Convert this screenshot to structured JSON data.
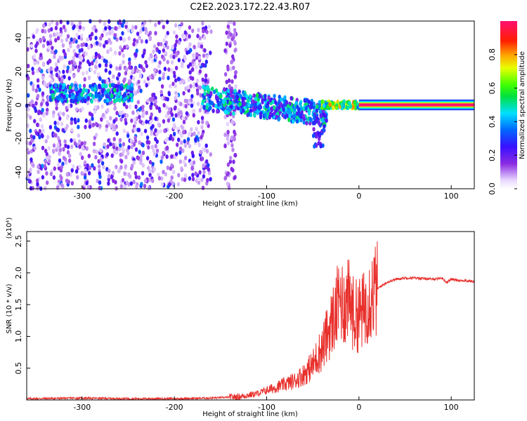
{
  "title": "C2E2.2023.172.22.43.R07",
  "colors": {
    "series": "#e8302c",
    "frame": "#000000",
    "background": "#ffffff"
  },
  "colorbar": {
    "label": "Normalized spectral amplitude",
    "ticks": [
      "0.0",
      "0.2",
      "0.4",
      "0.6",
      "0.8"
    ],
    "range": [
      0,
      1
    ],
    "colormap": "rainbow (white-violet-blue-cyan-green-yellow-orange-red-magenta)"
  },
  "chart_data": [
    {
      "type": "heatmap",
      "title": "C2E2.2023.172.22.43.R07",
      "xlabel": "Height of straight line (km)",
      "ylabel": "Frequency (Hz)",
      "xlim": [
        -360,
        125
      ],
      "ylim": [
        -50,
        50
      ],
      "xticks": [
        "-300",
        "-200",
        "-100",
        "0",
        "100"
      ],
      "yticks": [
        "40",
        "20",
        "0",
        "-20",
        "-40"
      ],
      "zlim": [
        0,
        1
      ],
      "zlabel": "Normalized spectral amplitude",
      "description_points": [
        {
          "x": -300,
          "y": 8,
          "z": 0.35
        },
        {
          "x": -260,
          "y": 6,
          "z": 0.4
        },
        {
          "x": -140,
          "y": 3,
          "z": 0.4
        },
        {
          "x": -110,
          "y": 1,
          "z": 0.45
        },
        {
          "x": -80,
          "y": -3,
          "z": 0.4
        },
        {
          "x": -50,
          "y": -4,
          "z": 0.5
        },
        {
          "x": -20,
          "y": 0,
          "z": 0.8
        },
        {
          "x": 0,
          "y": 0,
          "z": 0.9
        },
        {
          "x": 60,
          "y": 0,
          "z": 1.0
        },
        {
          "x": 120,
          "y": 0,
          "z": 1.0
        }
      ]
    },
    {
      "type": "line",
      "xlabel": "Height of straight line (km)",
      "ylabel": "SNR (10 * v/v)",
      "yscale_label": "(x10⁴)",
      "xlim": [
        -360,
        125
      ],
      "ylim": [
        0,
        2.65
      ],
      "xticks": [
        "-300",
        "-200",
        "-100",
        "0",
        "100"
      ],
      "yticks": [
        "0.5",
        "1.0",
        "1.5",
        "2.0",
        "2.5"
      ],
      "series": [
        {
          "color": "#e8302c",
          "x": [
            -360,
            -300,
            -250,
            -200,
            -160,
            -130,
            -110,
            -100,
            -90,
            -80,
            -70,
            -60,
            -50,
            -45,
            -40,
            -35,
            -30,
            -25,
            -20,
            -15,
            -10,
            -5,
            0,
            5,
            10,
            20,
            30,
            40,
            50,
            60,
            70,
            80,
            90,
            95,
            100,
            110,
            120,
            125
          ],
          "y": [
            0.02,
            0.03,
            0.02,
            0.02,
            0.03,
            0.05,
            0.1,
            0.15,
            0.2,
            0.25,
            0.3,
            0.4,
            0.55,
            0.7,
            0.8,
            1.0,
            1.2,
            1.4,
            1.6,
            1.5,
            1.55,
            1.3,
            1.35,
            1.4,
            1.6,
            1.75,
            1.85,
            1.9,
            1.92,
            1.92,
            1.91,
            1.9,
            1.92,
            1.85,
            1.9,
            1.88,
            1.87,
            1.86
          ]
        }
      ]
    }
  ]
}
